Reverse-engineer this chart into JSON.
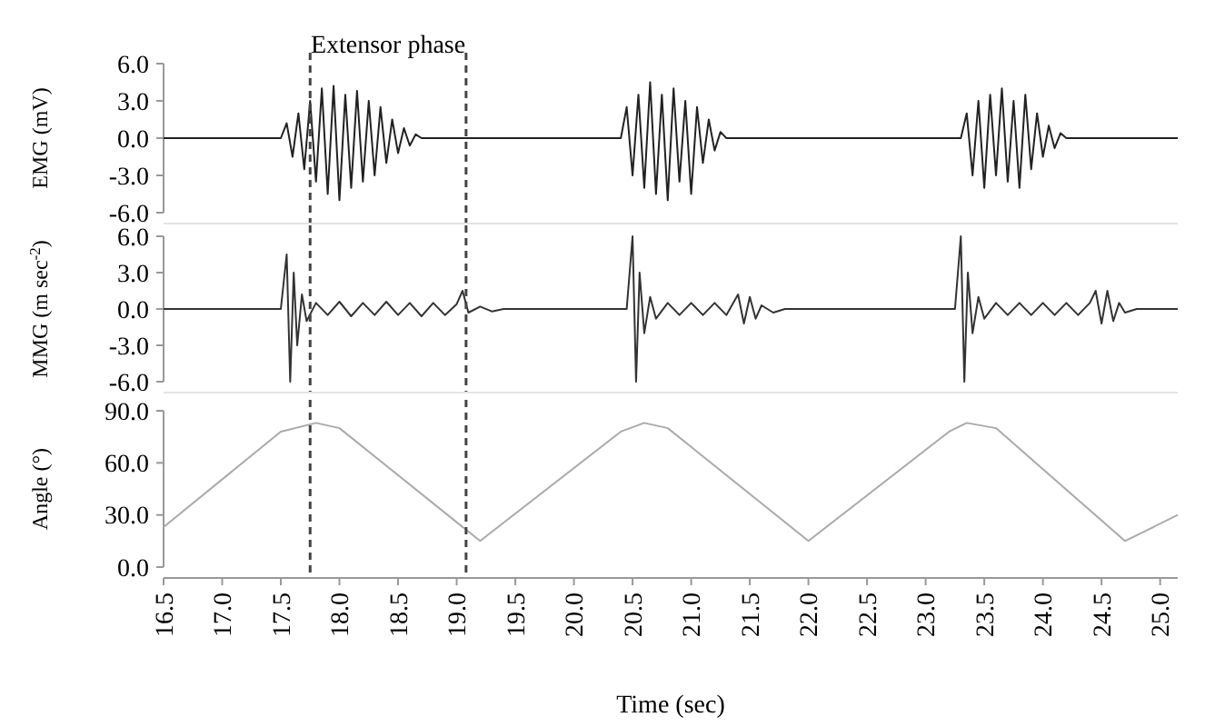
{
  "chart_data": [
    {
      "type": "line",
      "ylabel": "EMG (mV)",
      "annotations": [
        "Extensor phase"
      ],
      "xlim": [
        16.5,
        25.15
      ],
      "ylim": [
        -6,
        6
      ],
      "yticks": [
        {
          "value": 6,
          "label": "6.0"
        },
        {
          "value": 3,
          "label": "3.0"
        },
        {
          "value": 0,
          "label": "0.0"
        },
        {
          "value": -3,
          "label": "-3.0"
        },
        {
          "value": -6,
          "label": "-6.0"
        }
      ],
      "tick_labels": "y",
      "grid": false,
      "marker": "none",
      "line_style": "solid",
      "ref_lines": [
        {
          "axis": "x",
          "value": 17.75,
          "line_style": "dashed",
          "color": "#444444"
        },
        {
          "axis": "x",
          "value": 19.08,
          "line_style": "dashed",
          "color": "#444444"
        }
      ],
      "series": [
        {
          "color": "#222222",
          "x": [
            16.5,
            17.45,
            17.5,
            17.55,
            17.6,
            17.65,
            17.7,
            17.75,
            17.8,
            17.85,
            17.9,
            17.95,
            18.0,
            18.05,
            18.1,
            18.15,
            18.2,
            18.25,
            18.3,
            18.35,
            18.4,
            18.45,
            18.5,
            18.55,
            18.6,
            18.65,
            18.7,
            18.75,
            20.35,
            20.4,
            20.45,
            20.5,
            20.55,
            20.6,
            20.65,
            20.7,
            20.75,
            20.8,
            20.85,
            20.9,
            20.95,
            21.0,
            21.05,
            21.1,
            21.15,
            21.2,
            21.25,
            21.3,
            21.35,
            23.25,
            23.3,
            23.35,
            23.4,
            23.45,
            23.5,
            23.55,
            23.6,
            23.65,
            23.7,
            23.75,
            23.8,
            23.85,
            23.9,
            23.95,
            24.0,
            24.05,
            24.1,
            24.15,
            24.2,
            24.25,
            25.15
          ],
          "values": [
            0,
            0,
            0,
            1.2,
            -1.5,
            2.0,
            -2.5,
            3.0,
            -3.5,
            4.0,
            -4.5,
            4.2,
            -5.0,
            3.5,
            -4.0,
            3.8,
            -3.5,
            3.0,
            -3.0,
            2.5,
            -2.0,
            1.5,
            -1.2,
            0.8,
            -0.6,
            0.3,
            0,
            0,
            0,
            0,
            2.5,
            -3.0,
            3.5,
            -4.0,
            4.5,
            -4.5,
            3.5,
            -5.0,
            4.0,
            -3.5,
            3.0,
            -4.5,
            2.5,
            -2.0,
            1.5,
            -1.0,
            0.5,
            0,
            0,
            0,
            0,
            2.0,
            -3.0,
            3.0,
            -4.0,
            3.5,
            -3.0,
            4.0,
            -3.5,
            3.0,
            -4.0,
            3.5,
            -2.5,
            2.0,
            -1.5,
            1.0,
            -0.8,
            0.4,
            0,
            0,
            0
          ]
        }
      ]
    },
    {
      "type": "line",
      "ylabel": "MMG (m sec$^{-2}$)",
      "xlim": [
        16.5,
        25.15
      ],
      "ylim": [
        -6,
        6
      ],
      "yticks": [
        {
          "value": 6,
          "label": "6.0"
        },
        {
          "value": 3,
          "label": "3.0"
        },
        {
          "value": 0,
          "label": "0.0"
        },
        {
          "value": -3,
          "label": "-3.0"
        },
        {
          "value": -6,
          "label": "-6.0"
        }
      ],
      "tick_labels": "y",
      "grid": false,
      "marker": "none",
      "line_style": "solid",
      "ref_lines": [
        {
          "axis": "x",
          "value": 17.75,
          "line_style": "dashed",
          "color": "#444444"
        },
        {
          "axis": "x",
          "value": 19.08,
          "line_style": "dashed",
          "color": "#444444"
        }
      ],
      "series": [
        {
          "color": "#333333",
          "x": [
            16.5,
            17.5,
            17.55,
            17.58,
            17.61,
            17.64,
            17.68,
            17.72,
            17.8,
            17.9,
            18.0,
            18.1,
            18.2,
            18.3,
            18.4,
            18.5,
            18.6,
            18.7,
            18.8,
            18.9,
            19.0,
            19.05,
            19.1,
            19.2,
            19.3,
            19.4,
            20.45,
            20.5,
            20.53,
            20.56,
            20.6,
            20.65,
            20.7,
            20.8,
            20.9,
            21.0,
            21.1,
            21.2,
            21.3,
            21.4,
            21.45,
            21.5,
            21.55,
            21.6,
            21.7,
            21.8,
            23.25,
            23.3,
            23.33,
            23.36,
            23.4,
            23.45,
            23.5,
            23.6,
            23.7,
            23.8,
            23.9,
            24.0,
            24.1,
            24.2,
            24.3,
            24.4,
            24.45,
            24.5,
            24.55,
            24.6,
            24.65,
            24.7,
            24.8,
            25.15
          ],
          "values": [
            0,
            0,
            4.5,
            -6.0,
            3.0,
            -3.0,
            1.2,
            -1.0,
            0.5,
            -0.5,
            0.6,
            -0.6,
            0.5,
            -0.5,
            0.6,
            -0.5,
            0.5,
            -0.6,
            0.5,
            -0.5,
            0.4,
            1.5,
            -0.3,
            0.2,
            -0.2,
            0,
            0,
            6.0,
            -6.0,
            3.0,
            -2.0,
            1.0,
            -0.8,
            0.5,
            -0.5,
            0.5,
            -0.5,
            0.5,
            -0.5,
            1.2,
            -1.2,
            1.0,
            -0.8,
            0.3,
            -0.3,
            0,
            0,
            6.0,
            -6.0,
            3.0,
            -2.0,
            1.0,
            -0.8,
            0.5,
            -0.5,
            0.5,
            -0.5,
            0.5,
            -0.5,
            0.5,
            -0.5,
            0.5,
            1.5,
            -1.2,
            1.5,
            -1.0,
            0.5,
            -0.3,
            0,
            0
          ]
        }
      ]
    },
    {
      "type": "line",
      "xlabel": "Time (sec)",
      "ylabel": "Angle (°)",
      "xlim": [
        16.5,
        25.15
      ],
      "xticks": [
        {
          "value": 16.5,
          "label": "16.5"
        },
        {
          "value": 17,
          "label": "17.0"
        },
        {
          "value": 17.5,
          "label": "17.5"
        },
        {
          "value": 18,
          "label": "18.0"
        },
        {
          "value": 18.5,
          "label": "18.5"
        },
        {
          "value": 19,
          "label": "19.0"
        },
        {
          "value": 19.5,
          "label": "19.5"
        },
        {
          "value": 20,
          "label": "20.0"
        },
        {
          "value": 20.5,
          "label": "20.5"
        },
        {
          "value": 21,
          "label": "21.0"
        },
        {
          "value": 21.5,
          "label": "21.5"
        },
        {
          "value": 22,
          "label": "22.0"
        },
        {
          "value": 22.5,
          "label": "22.5"
        },
        {
          "value": 23,
          "label": "23.0"
        },
        {
          "value": 23.5,
          "label": "23.5"
        },
        {
          "value": 24,
          "label": "24.0"
        },
        {
          "value": 24.5,
          "label": "24.5"
        },
        {
          "value": 25,
          "label": "25.0"
        }
      ],
      "ylim": [
        0,
        90
      ],
      "yticks": [
        {
          "value": 0,
          "label": "0.0"
        },
        {
          "value": 30,
          "label": "30.0"
        },
        {
          "value": 60,
          "label": "60.0"
        },
        {
          "value": 90,
          "label": "90.0"
        }
      ],
      "grid": false,
      "marker": "none",
      "line_style": "solid",
      "ref_lines": [
        {
          "axis": "x",
          "value": 17.75,
          "line_style": "dashed",
          "color": "#444444"
        },
        {
          "axis": "x",
          "value": 19.08,
          "line_style": "dashed",
          "color": "#444444"
        }
      ],
      "series": [
        {
          "color": "#aaaaaa",
          "x": [
            16.5,
            17.5,
            17.8,
            18.0,
            19.2,
            20.4,
            20.6,
            20.8,
            22.0,
            23.2,
            23.35,
            23.6,
            24.7,
            25.15
          ],
          "values": [
            23,
            78,
            83,
            80,
            15,
            78,
            83,
            80,
            15,
            78,
            83,
            80,
            15,
            30
          ]
        }
      ]
    }
  ]
}
